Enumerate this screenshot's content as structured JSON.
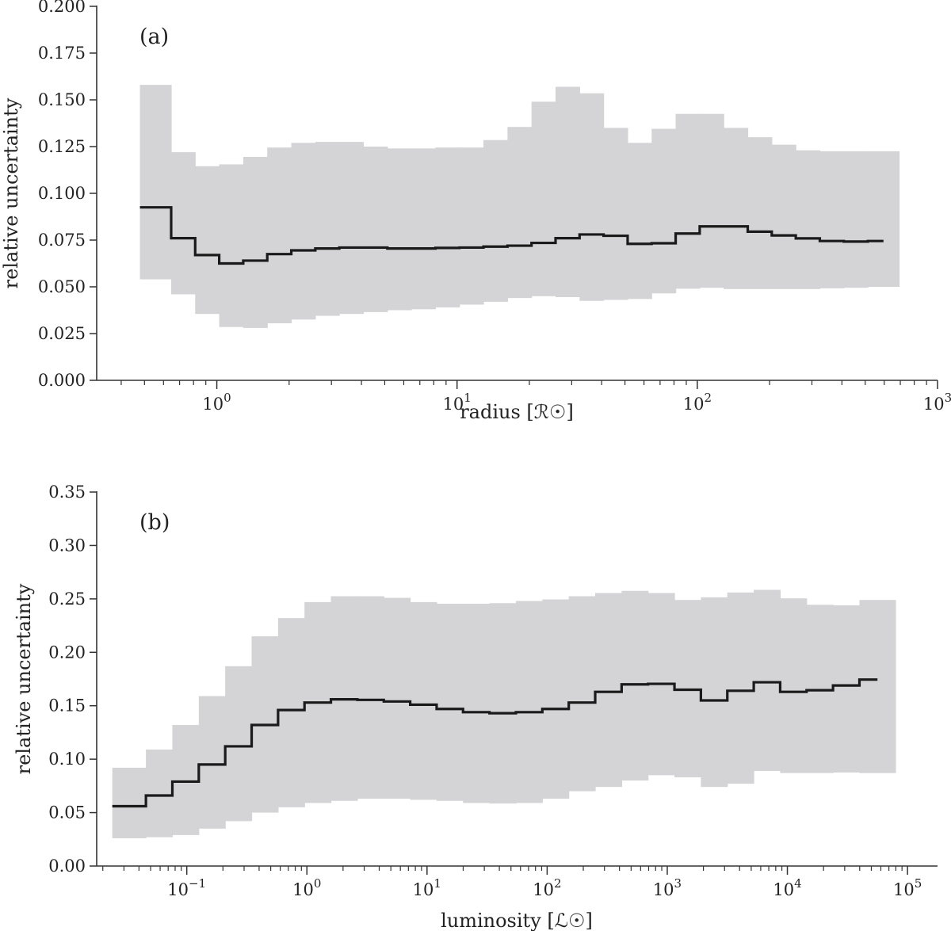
{
  "colors": {
    "band": "#d4d3d5",
    "line": "#1a1a1a",
    "axis": "#333333"
  },
  "chart_data": [
    {
      "type": "line",
      "panel_label": "(a)",
      "xlabel": "radius [ℛ☉]",
      "ylabel": "relative uncertainty",
      "xscale": "log",
      "xlim_log10": [
        -0.5,
        3.0
      ],
      "ylim": [
        0,
        0.2
      ],
      "yticks": [
        0.0,
        0.025,
        0.05,
        0.075,
        0.1,
        0.125,
        0.15,
        0.175,
        0.2
      ],
      "ytick_labels": [
        "0.000",
        "0.025",
        "0.050",
        "0.075",
        "0.100",
        "0.125",
        "0.150",
        "0.175",
        "0.200"
      ],
      "xticks_major_log10": [
        0,
        1,
        2,
        3
      ],
      "xtick_labels": [
        "10",
        "10",
        "10",
        "10"
      ],
      "xtick_exponents": [
        "0",
        "1",
        "2",
        "3"
      ],
      "bin_edges_log10": [
        -0.32,
        -0.19,
        -0.09,
        0.01,
        0.11,
        0.21,
        0.31,
        0.41,
        0.51,
        0.61,
        0.71,
        0.81,
        0.91,
        1.01,
        1.11,
        1.21,
        1.31,
        1.41,
        1.51,
        1.61,
        1.71,
        1.81,
        1.91,
        2.01,
        2.11,
        2.21,
        2.31,
        2.41,
        2.51,
        2.61,
        2.71,
        2.84
      ],
      "median": [
        0.0925,
        0.076,
        0.067,
        0.0625,
        0.064,
        0.0675,
        0.0695,
        0.0705,
        0.071,
        0.071,
        0.0705,
        0.0705,
        0.0708,
        0.071,
        0.0715,
        0.072,
        0.0735,
        0.076,
        0.078,
        0.0773,
        0.073,
        0.0733,
        0.0785,
        0.0823,
        0.0823,
        0.0795,
        0.0775,
        0.0759,
        0.0745,
        0.0742,
        0.0745
      ],
      "upper": [
        0.158,
        0.122,
        0.1145,
        0.1155,
        0.1195,
        0.1245,
        0.127,
        0.1275,
        0.1275,
        0.125,
        0.124,
        0.124,
        0.1245,
        0.1245,
        0.1285,
        0.1355,
        0.149,
        0.157,
        0.1535,
        0.135,
        0.127,
        0.1345,
        0.1425,
        0.1425,
        0.135,
        0.13,
        0.126,
        0.123,
        0.1225,
        0.1225,
        0.1225
      ],
      "lower": [
        0.054,
        0.046,
        0.0355,
        0.0285,
        0.028,
        0.0305,
        0.0325,
        0.0345,
        0.0355,
        0.0365,
        0.0375,
        0.038,
        0.039,
        0.0405,
        0.042,
        0.044,
        0.045,
        0.0445,
        0.0425,
        0.043,
        0.0435,
        0.0465,
        0.049,
        0.0495,
        0.0488,
        0.0488,
        0.0488,
        0.0488,
        0.0492,
        0.0495,
        0.05
      ]
    },
    {
      "type": "line",
      "panel_label": "(b)",
      "xlabel": "luminosity [ℒ☉]",
      "ylabel": "relative uncertainty",
      "xscale": "log",
      "xlim_log10": [
        -1.75,
        5.25
      ],
      "ylim": [
        0,
        0.35
      ],
      "yticks": [
        0.0,
        0.05,
        0.1,
        0.15,
        0.2,
        0.25,
        0.3,
        0.35
      ],
      "ytick_labels": [
        "0.00",
        "0.05",
        "0.10",
        "0.15",
        "0.20",
        "0.25",
        "0.30",
        "0.35"
      ],
      "xticks_major_log10": [
        -1,
        0,
        1,
        2,
        3,
        4,
        5
      ],
      "xtick_labels": [
        "10",
        "10",
        "10",
        "10",
        "10",
        "10",
        "10"
      ],
      "xtick_exponents": [
        "−1",
        "0",
        "1",
        "2",
        "3",
        "4",
        "5"
      ],
      "bin_edges_log10": [
        -1.62,
        -1.34,
        -1.12,
        -0.9,
        -0.68,
        -0.46,
        -0.24,
        -0.02,
        0.2,
        0.42,
        0.64,
        0.86,
        1.08,
        1.3,
        1.52,
        1.74,
        1.96,
        2.18,
        2.4,
        2.62,
        2.84,
        3.06,
        3.28,
        3.5,
        3.72,
        3.94,
        4.16,
        4.38,
        4.6,
        4.9
      ],
      "median": [
        0.056,
        0.066,
        0.079,
        0.095,
        0.112,
        0.132,
        0.146,
        0.153,
        0.156,
        0.1555,
        0.154,
        0.151,
        0.147,
        0.144,
        0.143,
        0.144,
        0.147,
        0.153,
        0.163,
        0.17,
        0.1705,
        0.165,
        0.155,
        0.164,
        0.172,
        0.163,
        0.1645,
        0.169,
        0.1745
      ],
      "upper": [
        0.092,
        0.109,
        0.132,
        0.159,
        0.187,
        0.215,
        0.232,
        0.247,
        0.2525,
        0.2525,
        0.251,
        0.247,
        0.2455,
        0.2455,
        0.246,
        0.248,
        0.2495,
        0.2525,
        0.2555,
        0.2575,
        0.2555,
        0.249,
        0.2515,
        0.256,
        0.2585,
        0.2505,
        0.2445,
        0.244,
        0.249
      ],
      "lower": [
        0.026,
        0.027,
        0.029,
        0.035,
        0.042,
        0.05,
        0.055,
        0.059,
        0.061,
        0.063,
        0.063,
        0.062,
        0.061,
        0.059,
        0.0585,
        0.059,
        0.063,
        0.07,
        0.074,
        0.08,
        0.085,
        0.083,
        0.074,
        0.077,
        0.089,
        0.087,
        0.087,
        0.0875,
        0.087
      ]
    }
  ]
}
